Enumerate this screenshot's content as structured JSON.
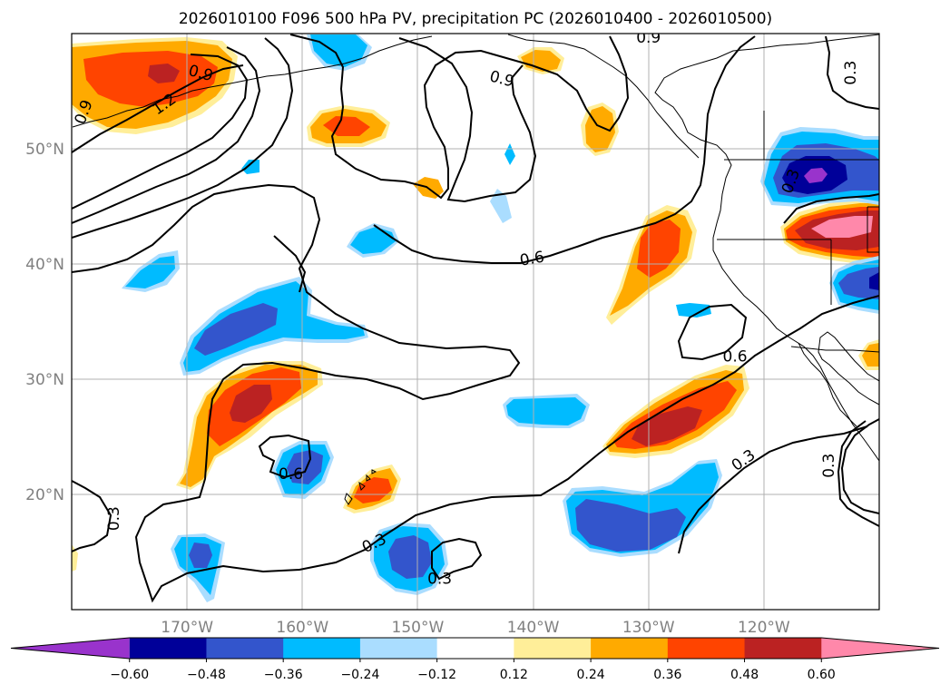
{
  "title": "2026010100 F096 500 hPa PV, precipitation PC (2026010400 - 2026010500)",
  "extent": {
    "lon": [
      -180,
      -110
    ],
    "lat": [
      10,
      60
    ]
  },
  "lat_labels": [
    {
      "lat": 50,
      "label": "50°N"
    },
    {
      "lat": 40,
      "label": "40°N"
    },
    {
      "lat": 30,
      "label": "30°N"
    },
    {
      "lat": 20,
      "label": "20°N"
    }
  ],
  "lon_labels": [
    {
      "lon": -170,
      "label": "170°W"
    },
    {
      "lon": -160,
      "label": "160°W"
    },
    {
      "lon": -150,
      "label": "150°W"
    },
    {
      "lon": -140,
      "label": "140°W"
    },
    {
      "lon": -130,
      "label": "130°W"
    },
    {
      "lon": -120,
      "label": "120°W"
    }
  ],
  "contour_labels": [
    {
      "text": "0.9",
      "lon": -168.8,
      "lat": 56.6,
      "rot": 15
    },
    {
      "text": "1.2",
      "lon": -172.0,
      "lat": 53.9,
      "rot": -35
    },
    {
      "text": "0.9",
      "lon": -179.0,
      "lat": 53.2,
      "rot": -70
    },
    {
      "text": "0.9",
      "lon": -142.7,
      "lat": 56.1,
      "rot": 15
    },
    {
      "text": "0.9",
      "lon": -130.0,
      "lat": 59.7,
      "rot": 0
    },
    {
      "text": "0.3",
      "lon": -112.5,
      "lat": 56.6,
      "rot": -90
    },
    {
      "text": "0.6",
      "lon": -140.1,
      "lat": 40.5,
      "rot": -10
    },
    {
      "text": "0.6",
      "lon": -122.5,
      "lat": 32.0,
      "rot": 0
    },
    {
      "text": "0.6",
      "lon": -161.0,
      "lat": 21.8,
      "rot": 0
    },
    {
      "text": "0.3",
      "lon": -176.4,
      "lat": 17.9,
      "rot": -90
    },
    {
      "text": "0.3",
      "lon": -117.7,
      "lat": 47.2,
      "rot": -70
    },
    {
      "text": "0.3",
      "lon": -153.8,
      "lat": 15.8,
      "rot": -25
    },
    {
      "text": "0.3",
      "lon": -148.1,
      "lat": 12.7,
      "rot": 0
    },
    {
      "text": "0.3",
      "lon": -121.8,
      "lat": 23.0,
      "rot": -35
    },
    {
      "text": "0.3",
      "lon": -114.4,
      "lat": 22.5,
      "rot": -90
    }
  ],
  "colorbar": {
    "levels": [
      -0.6,
      -0.48,
      -0.36,
      -0.24,
      -0.12,
      0.12,
      0.24,
      0.36,
      0.48,
      0.6
    ],
    "tick_labels": [
      "−0.60",
      "−0.48",
      "−0.36",
      "−0.24",
      "−0.12",
      "0.12",
      "0.24",
      "0.36",
      "0.48",
      "0.60"
    ],
    "colors": [
      "#9933cc",
      "#000099",
      "#3355cc",
      "#00bbff",
      "#aaddff",
      "#ffffff",
      "#ffee99",
      "#ffaa00",
      "#ff4400",
      "#bb2222",
      "#ff88aa"
    ]
  }
}
